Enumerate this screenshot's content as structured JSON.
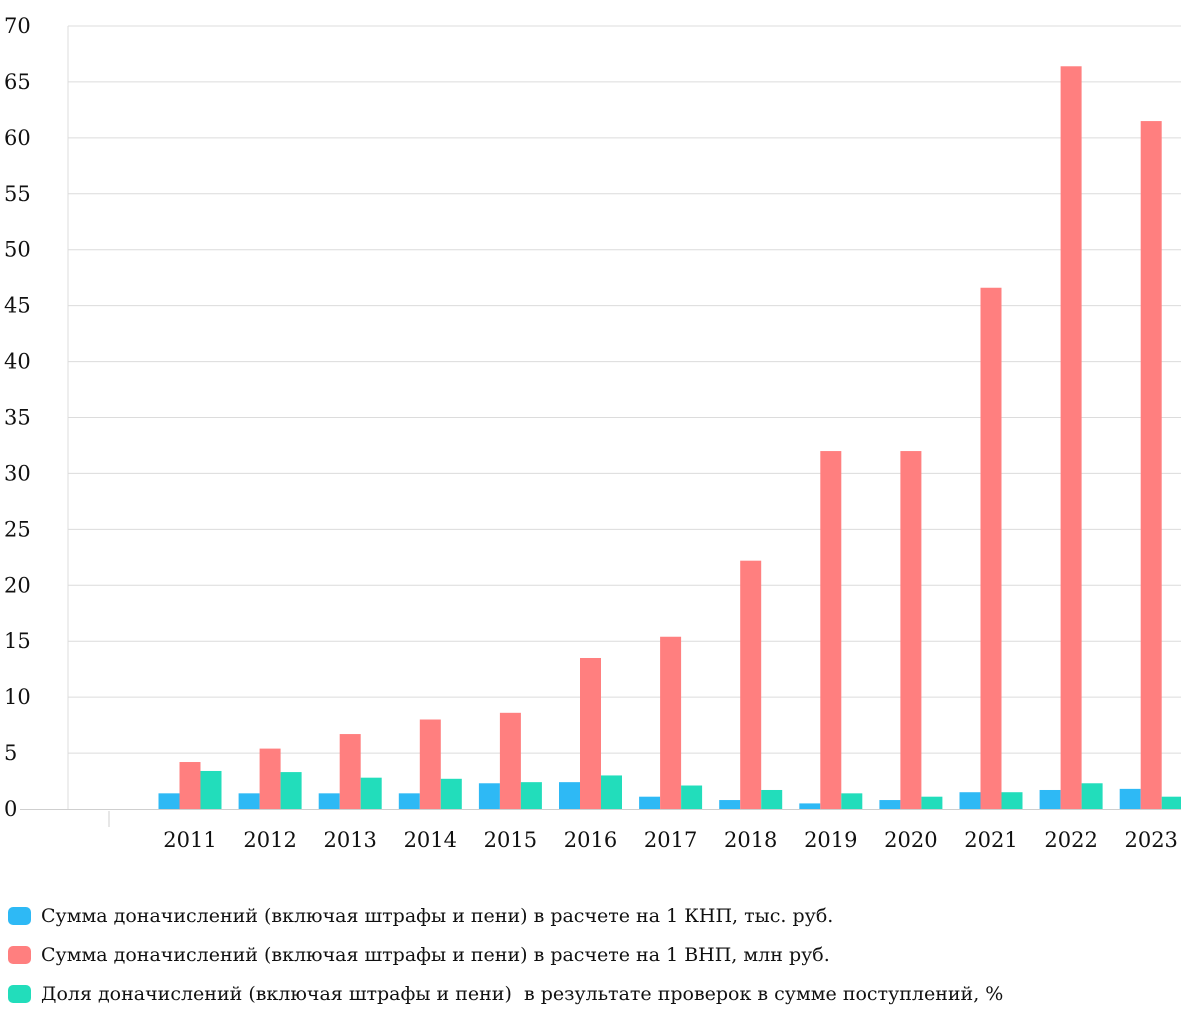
{
  "chart_data": {
    "type": "bar",
    "categories": [
      "2011",
      "2012",
      "2013",
      "2014",
      "2015",
      "2016",
      "2017",
      "2018",
      "2019",
      "2020",
      "2021",
      "2022",
      "2023"
    ],
    "series": [
      {
        "name": "Сумма доначислений (включая штрафы и пени) в расчете на 1 КНП, тыс. руб.",
        "color": "#2EB9F5",
        "values": [
          1.4,
          1.4,
          1.4,
          1.4,
          2.3,
          2.4,
          1.1,
          0.8,
          0.5,
          0.8,
          1.5,
          1.7,
          1.8
        ]
      },
      {
        "name": "Сумма доначислений (включая штрафы и пени) в расчете на 1 ВНП, млн руб.",
        "color": "#FF7F7F",
        "values": [
          4.2,
          5.4,
          6.7,
          8.0,
          8.6,
          13.5,
          15.4,
          22.2,
          32.0,
          32.0,
          46.6,
          66.4,
          61.5
        ]
      },
      {
        "name": "Доля доначислений (включая штрафы и пени)  в результате проверок в сумме поступлений, %",
        "color": "#22DDBB",
        "values": [
          3.4,
          3.3,
          2.8,
          2.7,
          2.4,
          3.0,
          2.1,
          1.7,
          1.4,
          1.1,
          1.5,
          2.3,
          1.1
        ]
      }
    ],
    "yticks": [
      "0",
      "5",
      "10",
      "15",
      "20",
      "25",
      "30",
      "35",
      "40",
      "45",
      "50",
      "55",
      "60",
      "65",
      "70"
    ],
    "ylim": [
      0,
      70
    ],
    "grid": true,
    "legend_position": "bottom"
  }
}
